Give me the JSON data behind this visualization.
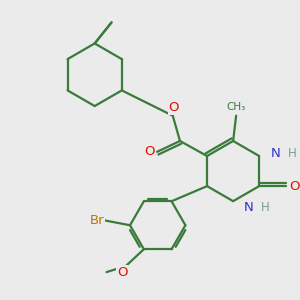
{
  "bg_color": "#ebebeb",
  "bond_color": "#3a7a3a",
  "bond_width": 1.6,
  "atom_colors": {
    "N": "#3333cc",
    "O": "#dd1100",
    "Br": "#bb7700",
    "H": "#7a9a9a",
    "C": "#3a7a3a"
  },
  "font_size": 9.5
}
